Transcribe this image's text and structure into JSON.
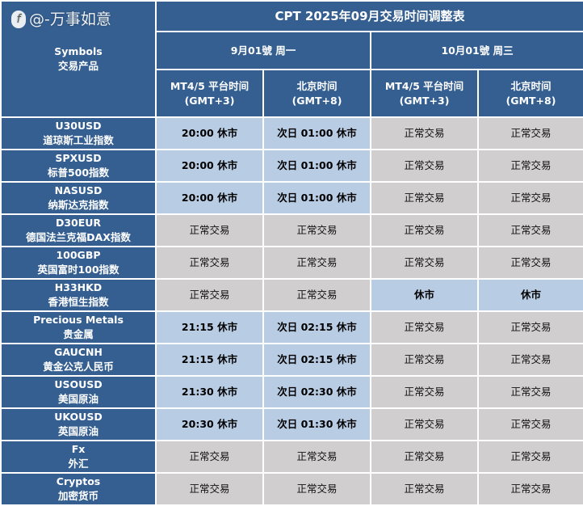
{
  "title": "CPT 2025年09月交易时间调整表",
  "symbols_header": {
    "en": "Symbols",
    "zh": "交易产品"
  },
  "dates": [
    {
      "label": "9月01號 周一",
      "cols": [
        {
          "l1": "MT4/5 平台时间",
          "l2": "(GMT+3)"
        },
        {
          "l1": "北京时间",
          "l2": "(GMT+8)"
        }
      ]
    },
    {
      "label": "10月01號 周三",
      "cols": [
        {
          "l1": "MT4/5 平台时间",
          "l2": "(GMT+3)"
        },
        {
          "l1": "北京时间",
          "l2": "(GMT+8)"
        }
      ]
    }
  ],
  "rows": [
    {
      "en": "U30USD",
      "zh": "道琼斯工业指数",
      "cells": [
        "20:00 休市",
        "次日 01:00 休市",
        "正常交易",
        "正常交易"
      ],
      "closed": [
        true,
        true,
        false,
        false
      ]
    },
    {
      "en": "SPXUSD",
      "zh": "标普500指数",
      "cells": [
        "20:00 休市",
        "次日 01:00 休市",
        "正常交易",
        "正常交易"
      ],
      "closed": [
        true,
        true,
        false,
        false
      ]
    },
    {
      "en": "NASUSD",
      "zh": "纳斯达克指数",
      "cells": [
        "20:00 休市",
        "次日 01:00 休市",
        "正常交易",
        "正常交易"
      ],
      "closed": [
        true,
        true,
        false,
        false
      ]
    },
    {
      "en": "D30EUR",
      "zh": "德国法兰克福DAX指数",
      "cells": [
        "正常交易",
        "正常交易",
        "正常交易",
        "正常交易"
      ],
      "closed": [
        false,
        false,
        false,
        false
      ]
    },
    {
      "en": "100GBP",
      "zh": "英国富时100指数",
      "cells": [
        "正常交易",
        "正常交易",
        "正常交易",
        "正常交易"
      ],
      "closed": [
        false,
        false,
        false,
        false
      ]
    },
    {
      "en": "H33HKD",
      "zh": "香港恒生指数",
      "cells": [
        "正常交易",
        "正常交易",
        "休市",
        "休市"
      ],
      "closed": [
        false,
        false,
        true,
        true
      ]
    },
    {
      "en": "Precious Metals",
      "zh": "贵金属",
      "cells": [
        "21:15 休市",
        "次日 02:15 休市",
        "正常交易",
        "正常交易"
      ],
      "closed": [
        true,
        true,
        false,
        false
      ]
    },
    {
      "en": "GAUCNH",
      "zh": "黄金公克人民币",
      "cells": [
        "21:15 休市",
        "次日 02:15 休市",
        "正常交易",
        "正常交易"
      ],
      "closed": [
        true,
        true,
        false,
        false
      ]
    },
    {
      "en": "USOUSD",
      "zh": "美国原油",
      "cells": [
        "21:30 休市",
        "次日 02:30 休市",
        "正常交易",
        "正常交易"
      ],
      "closed": [
        true,
        true,
        false,
        false
      ]
    },
    {
      "en": "UKOUSD",
      "zh": "英国原油",
      "cells": [
        "20:30 休市",
        "次日 01:30 休市",
        "正常交易",
        "正常交易"
      ],
      "closed": [
        true,
        true,
        false,
        false
      ]
    },
    {
      "en": "Fx",
      "zh": "外汇",
      "cells": [
        "正常交易",
        "正常交易",
        "正常交易",
        "正常交易"
      ],
      "closed": [
        false,
        false,
        false,
        false
      ]
    },
    {
      "en": "Cryptos",
      "zh": "加密货币",
      "cells": [
        "正常交易",
        "正常交易",
        "正常交易",
        "正常交易"
      ],
      "closed": [
        false,
        false,
        false,
        false
      ]
    }
  ],
  "watermark": "@-万事如意",
  "colors": {
    "header": "#355f91",
    "closed": "#b8cce4",
    "normal": "#d0cece"
  }
}
